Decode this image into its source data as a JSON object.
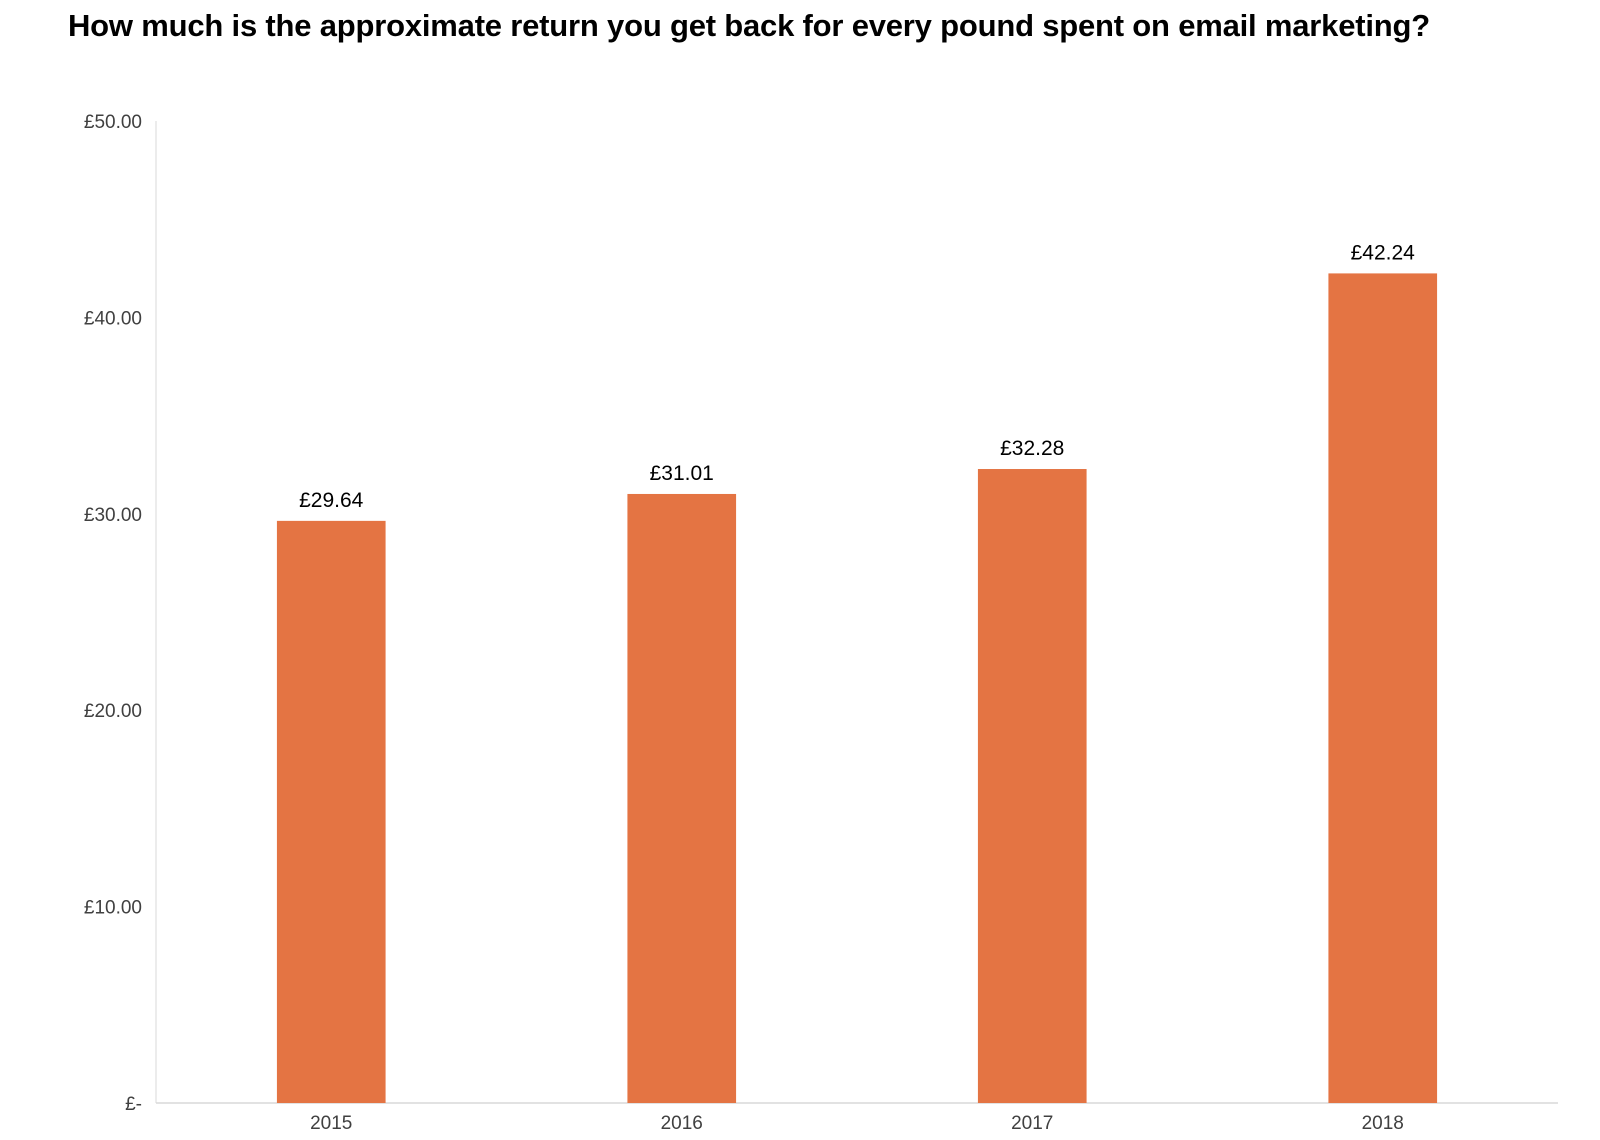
{
  "chart_data": {
    "type": "bar",
    "title": "How much is the approximate return you get back for every pound spent on email marketing?",
    "categories": [
      "2015",
      "2016",
      "2017",
      "2018"
    ],
    "values": [
      29.64,
      31.01,
      32.28,
      42.24
    ],
    "data_labels": [
      "£29.64",
      "£31.01",
      "£32.28",
      "£42.24"
    ],
    "ylim": [
      0,
      50
    ],
    "y_ticks": [
      0,
      10,
      20,
      30,
      40,
      50
    ],
    "y_tick_labels": [
      "£-",
      "£10.00",
      "£20.00",
      "£30.00",
      "£40.00",
      "£50.00"
    ],
    "xlabel": "",
    "ylabel": "",
    "grid": false,
    "legend": "none",
    "bar_color": "#E47443"
  }
}
